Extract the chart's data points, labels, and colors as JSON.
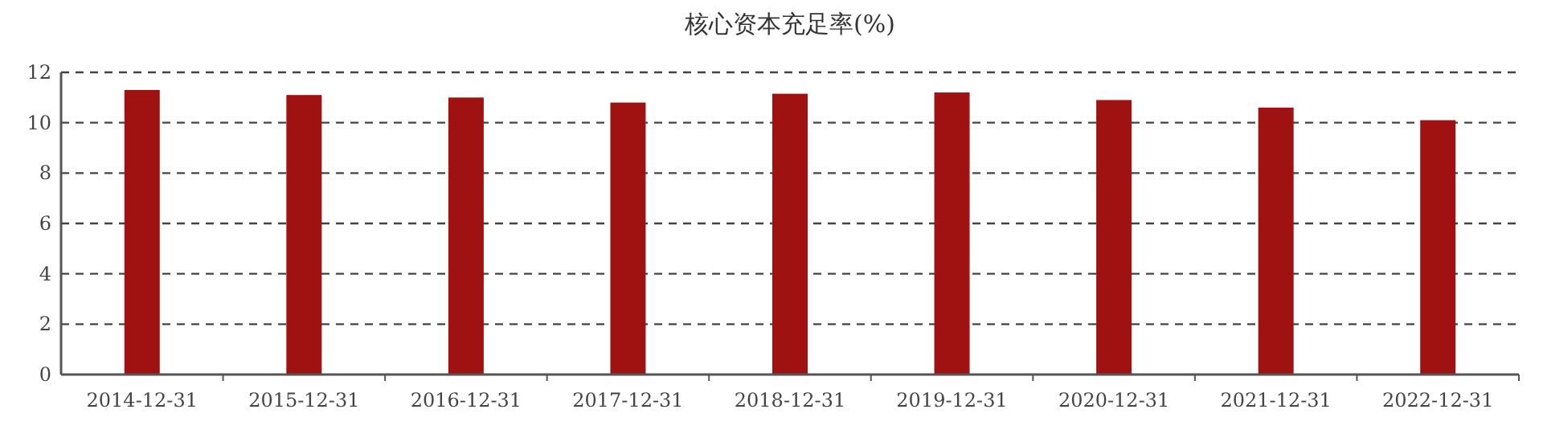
{
  "chart_data": {
    "type": "bar",
    "title": "核心资本充足率(%)",
    "categories": [
      "2014-12-31",
      "2015-12-31",
      "2016-12-31",
      "2017-12-31",
      "2018-12-31",
      "2019-12-31",
      "2020-12-31",
      "2021-12-31",
      "2022-12-31"
    ],
    "values": [
      11.3,
      11.1,
      11.0,
      10.8,
      11.15,
      11.2,
      10.9,
      10.6,
      10.1
    ],
    "color": "#a01212",
    "ylim": [
      0,
      12
    ],
    "yticks": [
      0,
      2,
      4,
      6,
      8,
      10,
      12
    ],
    "grid": "y"
  }
}
